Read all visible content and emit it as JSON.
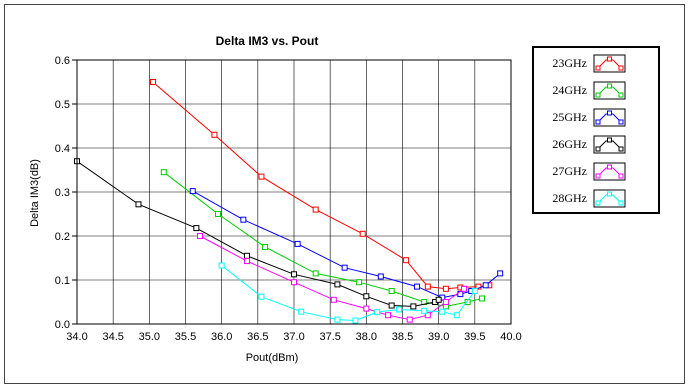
{
  "chart_data": {
    "type": "line",
    "title": "Delta IM3 vs. Pout",
    "xlabel": "Pout(dBm)",
    "ylabel": "Delta IM3(dB)",
    "xlim": [
      34.0,
      40.0
    ],
    "ylim": [
      0.0,
      0.6
    ],
    "x_ticks": [
      "34.0",
      "34.5",
      "35.0",
      "35.5",
      "36.0",
      "36.5",
      "37.0",
      "37.5",
      "38.0",
      "38.5",
      "39.0",
      "39.5",
      "40.0"
    ],
    "y_ticks": [
      "0.0",
      "0.1",
      "0.2",
      "0.3",
      "0.4",
      "0.5",
      "0.6"
    ],
    "grid": true,
    "legend_position": "right",
    "series": [
      {
        "name": "23GHz",
        "color": "#ff0000",
        "x": [
          35.05,
          35.9,
          36.55,
          37.3,
          37.95,
          38.55,
          38.85,
          39.1,
          39.3,
          39.55,
          39.7
        ],
        "y": [
          0.55,
          0.43,
          0.335,
          0.26,
          0.205,
          0.145,
          0.085,
          0.08,
          0.083,
          0.085,
          0.088
        ]
      },
      {
        "name": "24GHz",
        "color": "#00cc00",
        "x": [
          35.2,
          35.95,
          36.6,
          37.3,
          37.9,
          38.35,
          38.8,
          39.1,
          39.4,
          39.6
        ],
        "y": [
          0.345,
          0.25,
          0.175,
          0.115,
          0.095,
          0.075,
          0.05,
          0.04,
          0.05,
          0.058
        ]
      },
      {
        "name": "25GHz",
        "color": "#0000ff",
        "x": [
          35.6,
          36.3,
          37.05,
          37.7,
          38.2,
          38.7,
          39.05,
          39.3,
          39.45,
          39.65,
          39.85
        ],
        "y": [
          0.302,
          0.237,
          0.182,
          0.128,
          0.108,
          0.085,
          0.06,
          0.068,
          0.075,
          0.088,
          0.115
        ]
      },
      {
        "name": "26GHz",
        "color": "#000000",
        "x": [
          34.0,
          34.85,
          35.65,
          36.35,
          37.0,
          37.6,
          38.0,
          38.35,
          38.65,
          38.95,
          39.0
        ],
        "y": [
          0.37,
          0.272,
          0.218,
          0.155,
          0.113,
          0.09,
          0.063,
          0.042,
          0.04,
          0.05,
          0.055
        ]
      },
      {
        "name": "27GHz",
        "color": "#ff00ff",
        "x": [
          35.7,
          36.35,
          37.0,
          37.55,
          38.0,
          38.3,
          38.6,
          38.85,
          39.1,
          39.35
        ],
        "y": [
          0.2,
          0.143,
          0.095,
          0.055,
          0.035,
          0.02,
          0.01,
          0.02,
          0.05,
          0.08
        ]
      },
      {
        "name": "28GHz",
        "color": "#00ffff",
        "x": [
          36.0,
          36.55,
          37.1,
          37.6,
          37.85,
          38.15,
          38.45,
          38.8,
          39.05,
          39.25,
          39.5
        ],
        "y": [
          0.133,
          0.062,
          0.028,
          0.01,
          0.008,
          0.027,
          0.033,
          0.03,
          0.028,
          0.02,
          0.075
        ]
      }
    ]
  }
}
